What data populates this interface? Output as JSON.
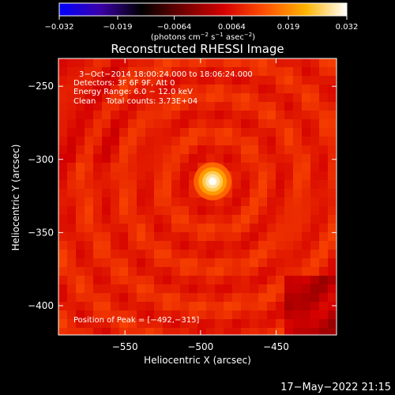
{
  "chart_data": {
    "type": "heatmap",
    "title": "Reconstructed RHESSI Image",
    "xlabel": "Heliocentric X (arcsec)",
    "ylabel": "Heliocentric Y (arcsec)",
    "xlim": [
      -594,
      -410
    ],
    "ylim": [
      -420,
      -231
    ],
    "x_ticks": [
      -550,
      -500,
      -450
    ],
    "x_tick_labels": [
      "−550",
      "−500",
      "−450"
    ],
    "y_ticks": [
      -250,
      -300,
      -350,
      -400
    ],
    "y_tick_labels": [
      "−250",
      "−300",
      "−350",
      "−400"
    ],
    "colorbar": {
      "range": [
        -0.032,
        0.032
      ],
      "ticks": [
        -0.032,
        -0.019,
        -0.0064,
        0.0064,
        0.019,
        0.032
      ],
      "tick_labels": [
        "−0.032",
        "−0.019",
        "−0.0064",
        "0.0064",
        "0.019",
        "0.032"
      ],
      "unit_parts": [
        "(photons cm",
        "−2",
        " s",
        "−1",
        " asec",
        "−2",
        ")"
      ],
      "colors": [
        "#0000ff",
        "#3a00a8",
        "#000000",
        "#700000",
        "#d40000",
        "#ff5000",
        "#ffb400",
        "#ffffff"
      ]
    },
    "peak": {
      "x": -492,
      "y": -315,
      "value": 0.032
    },
    "background_level": 0.0085,
    "info_lines": [
      "3−Oct−2014 18:00:24.000 to 18:06:24.000",
      "Detectors: 3F 6F 9F, Att 0",
      "Energy Range: 6.0 − 12.0 keV",
      "Clean    Total counts: 3.73E+04"
    ],
    "peak_label": "Position of Peak = [−492,−315]",
    "timestamp": "17−May−2022 21:15"
  }
}
